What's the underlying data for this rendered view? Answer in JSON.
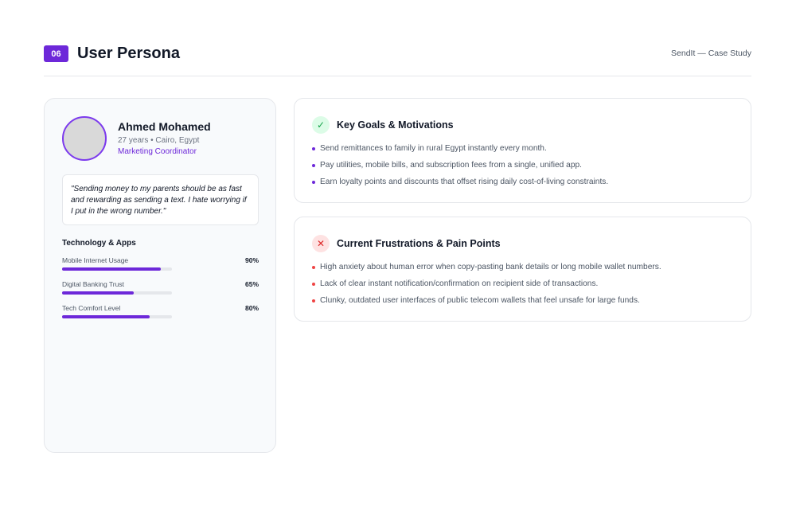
{
  "header": {
    "section_number": "06",
    "title": "User Persona",
    "case_label": "SendIt — Case Study"
  },
  "persona": {
    "name": "Ahmed Mohamed",
    "meta": "27 years • Cairo, Egypt",
    "role": "Marketing Coordinator",
    "quote": "\"Sending money to my parents should be as fast and rewarding as sending a text. I hate worrying if I put in the wrong number.\"",
    "tech_title": "Technology & Apps",
    "metrics": [
      {
        "label": "Mobile Internet Usage",
        "value": "90%",
        "fraction": 0.9
      },
      {
        "label": "Digital Banking Trust",
        "value": "65%",
        "fraction": 0.65
      },
      {
        "label": "Tech Comfort Level",
        "value": "80%",
        "fraction": 0.8
      }
    ]
  },
  "goals": {
    "title": "Key Goals & Motivations",
    "icon": "check-icon",
    "items": [
      "Send remittances to family in rural Egypt instantly every month.",
      "Pay utilities, mobile bills, and subscription fees from a single, unified app.",
      "Earn loyalty points and discounts that offset rising daily cost-of-living constraints."
    ]
  },
  "pain_points": {
    "title": "Current Frustrations & Pain Points",
    "icon": "x-icon",
    "items": [
      "High anxiety about human error when copy-pasting bank details or long mobile wallet numbers.",
      "Lack of clear instant notification/confirmation on recipient side of transactions.",
      "Clunky, outdated user interfaces of public telecom wallets that feel unsafe for large funds."
    ]
  },
  "colors": {
    "accent": "#6d28d9",
    "success": "#16a34a",
    "danger": "#dc2626"
  }
}
